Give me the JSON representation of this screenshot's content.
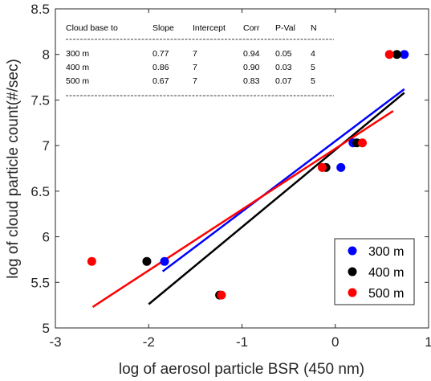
{
  "chart_data": {
    "type": "scatter",
    "title": "",
    "xlabel": "log of aerosol particle BSR (450 nm)",
    "ylabel": "log of cloud particle count(#/sec)",
    "xlim": [
      -3,
      1
    ],
    "ylim": [
      5,
      8.5
    ],
    "xticks": [
      -3,
      -2,
      -1,
      0,
      1
    ],
    "yticks": [
      5,
      5.5,
      6,
      6.5,
      7,
      7.5,
      8,
      8.5
    ],
    "x_tick_labels": [
      "-3",
      "-2",
      "-1",
      "0",
      "1"
    ],
    "y_tick_labels": [
      "5",
      "5.5",
      "6",
      "6.5",
      "7",
      "7.5",
      "8",
      "8.5"
    ],
    "grid": false,
    "legend_position": "bottom-right",
    "series": [
      {
        "name": "300 m",
        "color": "#0000ff",
        "points": [
          [
            -1.83,
            5.73
          ],
          [
            0.06,
            6.76
          ],
          [
            0.19,
            7.03
          ],
          [
            0.74,
            8.0
          ]
        ],
        "fit_line": [
          [
            -1.85,
            5.62
          ],
          [
            0.74,
            7.62
          ]
        ]
      },
      {
        "name": "400 m",
        "color": "#000000",
        "points": [
          [
            -2.02,
            5.73
          ],
          [
            -1.24,
            5.36
          ],
          [
            -0.1,
            6.76
          ],
          [
            0.23,
            7.03
          ],
          [
            0.66,
            8.0
          ]
        ],
        "fit_line": [
          [
            -2.0,
            5.26
          ],
          [
            0.74,
            7.58
          ]
        ]
      },
      {
        "name": "500 m",
        "color": "#ff0000",
        "points": [
          [
            -2.61,
            5.73
          ],
          [
            -1.22,
            5.36
          ],
          [
            -0.14,
            6.76
          ],
          [
            0.29,
            7.03
          ],
          [
            0.58,
            8.0
          ]
        ],
        "fit_line": [
          [
            -2.6,
            5.23
          ],
          [
            0.62,
            7.38
          ]
        ]
      }
    ],
    "stats_table": {
      "headers": [
        "Cloud base to",
        "Slope",
        "Intercept",
        "Corr",
        "P-Val",
        "N"
      ],
      "rows": [
        [
          "300 m",
          "0.77",
          "7",
          "0.94",
          "0.05",
          "4"
        ],
        [
          "400 m",
          "0.86",
          "7",
          "0.90",
          "0.03",
          "5"
        ],
        [
          "500 m",
          "0.67",
          "7",
          "0.83",
          "0.07",
          "5"
        ]
      ]
    }
  }
}
